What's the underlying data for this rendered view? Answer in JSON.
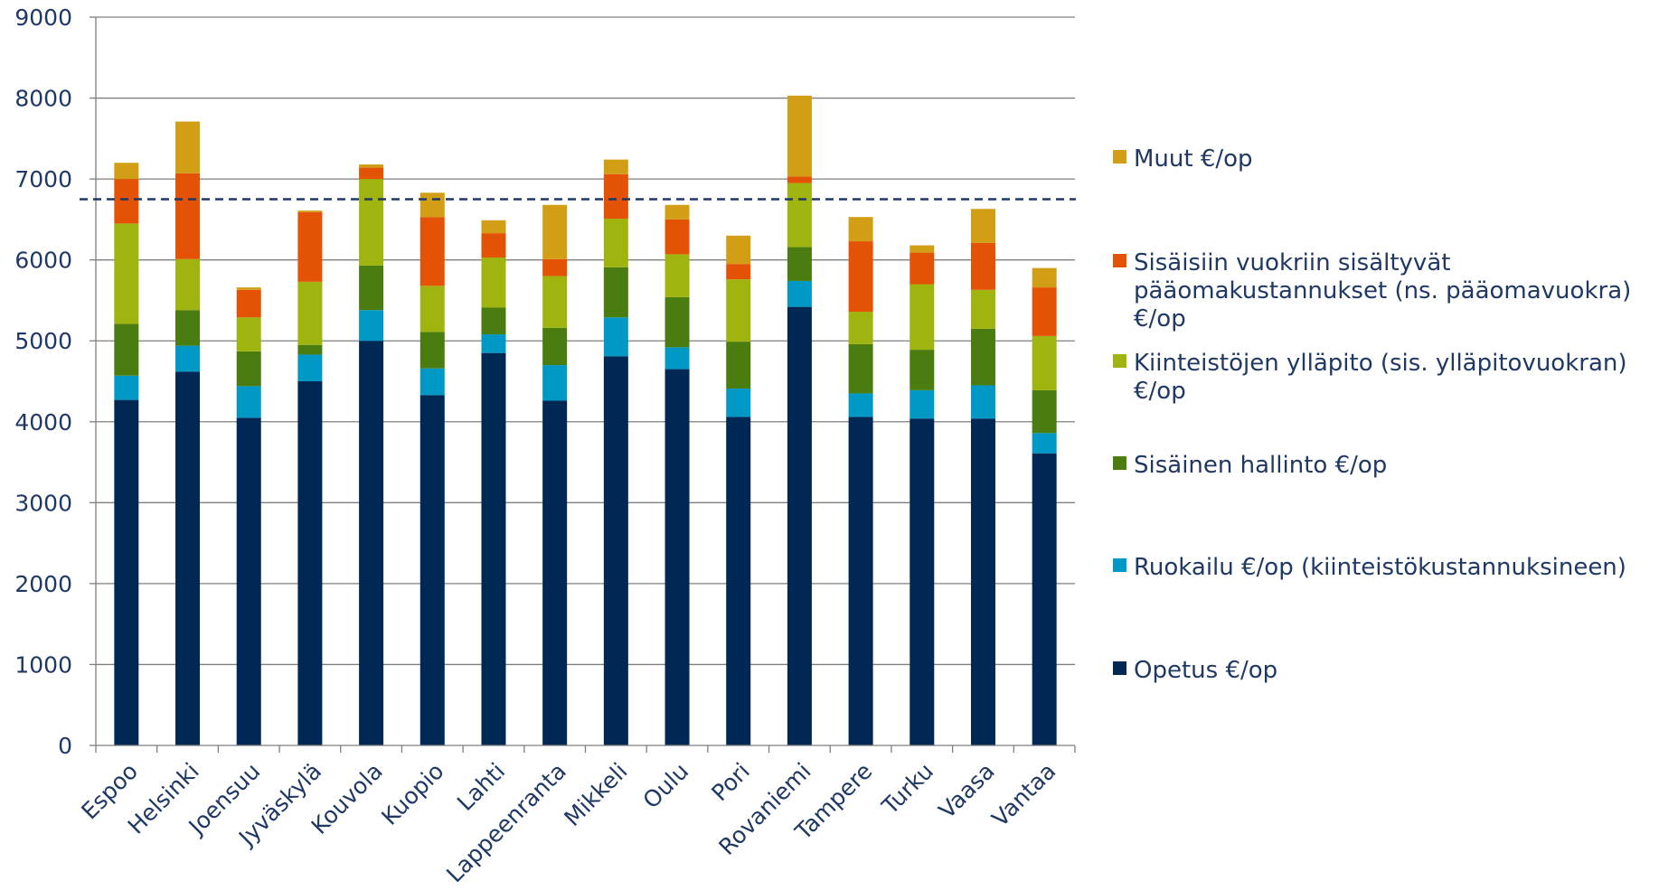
{
  "chart_data": {
    "type": "bar",
    "stacked": true,
    "title": "",
    "xlabel": "",
    "ylabel": "",
    "ylim": [
      0,
      9000
    ],
    "yticks": [
      "0",
      "1000",
      "2000",
      "3000",
      "4000",
      "5000",
      "6000",
      "7000",
      "8000",
      "9000"
    ],
    "grid": true,
    "legend_position": "right",
    "reference_line": {
      "value": 6750,
      "style": "dashed",
      "color": "#1f3864"
    },
    "categories": [
      "Espoo",
      "Helsinki",
      "Joensuu",
      "Jyväskylä",
      "Kouvola",
      "Kuopio",
      "Lahti",
      "Lappeenranta",
      "Mikkeli",
      "Oulu",
      "Pori",
      "Rovaniemi",
      "Tampere",
      "Turku",
      "Vaasa",
      "Vantaa"
    ],
    "series": [
      {
        "name": "Opetus €/op",
        "color": "#002855",
        "values": [
          4270,
          4620,
          4050,
          4500,
          5000,
          4330,
          4850,
          4260,
          4810,
          4650,
          4060,
          5420,
          4060,
          4040,
          4040,
          3610
        ]
      },
      {
        "name": "Ruokailu €/op (kiinteistökustannuksineen)",
        "color": "#0099c6",
        "values": [
          300,
          320,
          390,
          330,
          380,
          330,
          230,
          440,
          480,
          270,
          350,
          320,
          290,
          350,
          410,
          250
        ]
      },
      {
        "name": "Sisäinen hallinto €/op",
        "color": "#4a7c0f",
        "values": [
          640,
          440,
          430,
          120,
          550,
          450,
          330,
          460,
          620,
          620,
          580,
          420,
          610,
          500,
          700,
          530
        ]
      },
      {
        "name": "Kiinteistöjen ylläpito (sis. ylläpitovuokran) €/op",
        "color": "#9fb40f",
        "values": [
          1240,
          630,
          420,
          780,
          1070,
          570,
          620,
          640,
          600,
          530,
          770,
          790,
          400,
          810,
          480,
          670
        ]
      },
      {
        "name": "Sisäisiin vuokriin sisältyvät pääomakustannukset (ns. pääomavuokra) €/op",
        "color": "#e35205",
        "values": [
          550,
          1060,
          340,
          860,
          140,
          850,
          300,
          210,
          550,
          430,
          190,
          80,
          870,
          390,
          580,
          600
        ]
      },
      {
        "name": "Muut €/op",
        "color": "#d19e15",
        "values": [
          200,
          640,
          30,
          20,
          40,
          300,
          160,
          670,
          180,
          180,
          350,
          1000,
          300,
          90,
          420,
          240
        ]
      }
    ]
  },
  "legend": [
    {
      "lines": [
        "Muut €/op"
      ],
      "color": "#d19e15"
    },
    {
      "lines": [
        "Sisäisiin vuokriin sisältyvät",
        "pääomakustannukset (ns. pääomavuokra)",
        "€/op"
      ],
      "color": "#e35205"
    },
    {
      "lines": [
        "Kiinteistöjen ylläpito (sis. ylläpitovuokran)",
        "€/op"
      ],
      "color": "#9fb40f"
    },
    {
      "lines": [
        "Sisäinen hallinto €/op"
      ],
      "color": "#4a7c0f"
    },
    {
      "lines": [
        "Ruokailu €/op (kiinteistökustannuksineen)"
      ],
      "color": "#0099c6"
    },
    {
      "lines": [
        "Opetus €/op"
      ],
      "color": "#002855"
    }
  ],
  "colors": {
    "axis": "#7f7f7f",
    "gridline": "#7f7f7f",
    "text": "#1f3864"
  }
}
